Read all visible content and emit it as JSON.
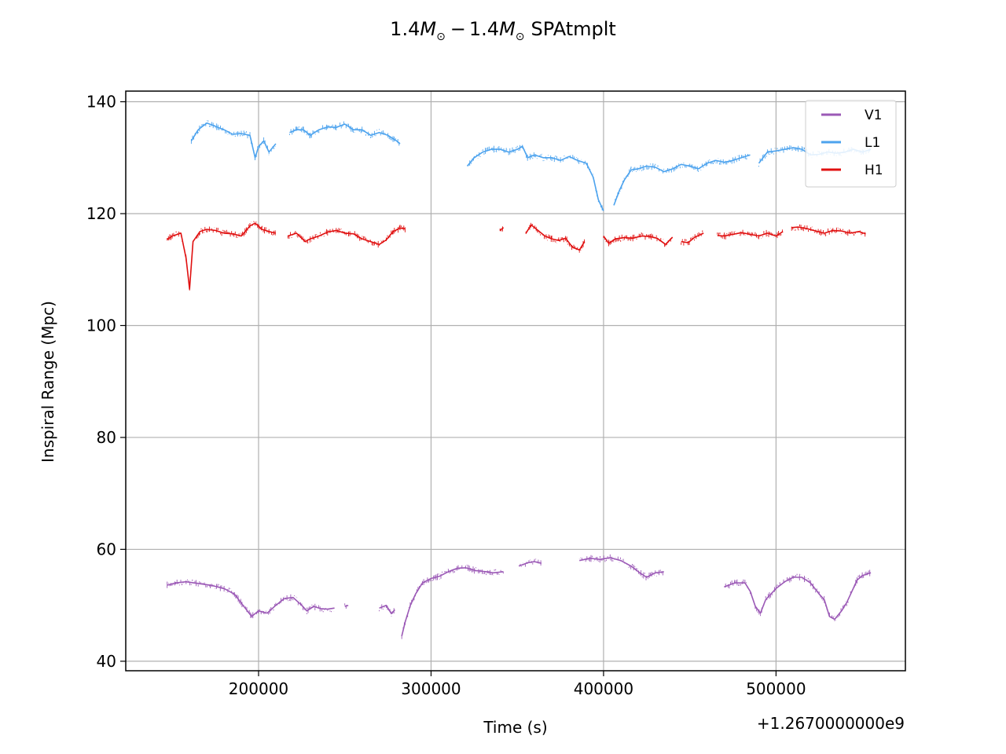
{
  "chart_data": {
    "type": "line",
    "title": "1.4M⊙ − 1.4M⊙ SPAtmplt",
    "title_parts": {
      "m1": "1.4",
      "m2": "1.4",
      "mass_symbol": "M",
      "sun_symbol": "⊙",
      "minus": "−",
      "suffix": "SPAtmplt"
    },
    "xlabel": "Time (s)",
    "ylabel": "Inspiral Range (Mpc)",
    "x_offset_label": "+1.2670000000e9",
    "x_offset": 1267000000,
    "xlim": [
      123000,
      575000
    ],
    "ylim": [
      38.3,
      141.9
    ],
    "x_ticks": [
      200000,
      300000,
      400000,
      500000
    ],
    "x_tick_labels": [
      "200000",
      "300000",
      "400000",
      "500000"
    ],
    "y_ticks": [
      40,
      60,
      80,
      100,
      120,
      140
    ],
    "y_tick_labels": [
      "40",
      "60",
      "80",
      "100",
      "120",
      "140"
    ],
    "grid": true,
    "legend_position": "top-right",
    "legend": [
      "V1",
      "L1",
      "H1"
    ],
    "series": [
      {
        "name": "V1",
        "color": "#9b59b6",
        "segments": [
          [
            [
              147000,
              53.6
            ],
            [
              152000,
              54.0
            ],
            [
              158000,
              54.2
            ],
            [
              165000,
              53.9
            ],
            [
              172000,
              53.6
            ],
            [
              180000,
              53.0
            ],
            [
              186000,
              52.0
            ],
            [
              191000,
              50.0
            ],
            [
              196000,
              48.0
            ],
            [
              200000,
              49.0
            ],
            [
              205000,
              48.6
            ],
            [
              210000,
              50.0
            ],
            [
              215000,
              51.2
            ],
            [
              220000,
              51.4
            ],
            [
              225000,
              50.0
            ],
            [
              228000,
              49.0
            ],
            [
              232000,
              49.8
            ],
            [
              236000,
              49.4
            ],
            [
              240000,
              49.3
            ],
            [
              244000,
              49.5
            ]
          ],
          [
            [
              250000,
              49.8
            ],
            [
              252000,
              50.0
            ]
          ],
          [
            [
              270000,
              49.5
            ],
            [
              274000,
              50.0
            ],
            [
              277000,
              48.5
            ],
            [
              279000,
              49.2
            ]
          ],
          [
            [
              283000,
              44.5
            ],
            [
              285000,
              47.0
            ],
            [
              288000,
              50.0
            ],
            [
              291000,
              52.0
            ],
            [
              295000,
              54.0
            ],
            [
              300000,
              54.8
            ],
            [
              305000,
              55.2
            ],
            [
              310000,
              56.0
            ],
            [
              315000,
              56.6
            ],
            [
              320000,
              56.7
            ],
            [
              326000,
              56.2
            ],
            [
              332000,
              56.0
            ],
            [
              336000,
              55.8
            ],
            [
              342000,
              56.0
            ]
          ],
          [
            [
              351000,
              57.0
            ],
            [
              356000,
              57.6
            ],
            [
              360000,
              57.8
            ],
            [
              364000,
              57.5
            ]
          ],
          [
            [
              386000,
              58.0
            ],
            [
              392000,
              58.4
            ],
            [
              398000,
              58.2
            ],
            [
              404000,
              58.5
            ],
            [
              410000,
              58.0
            ],
            [
              416000,
              57.0
            ],
            [
              421000,
              55.8
            ],
            [
              425000,
              55.0
            ],
            [
              430000,
              55.8
            ],
            [
              435000,
              56.0
            ]
          ],
          [
            [
              470000,
              53.3
            ],
            [
              476000,
              54.0
            ],
            [
              482000,
              54.0
            ],
            [
              485000,
              52.5
            ],
            [
              488000,
              49.8
            ],
            [
              491000,
              48.6
            ],
            [
              494000,
              51.0
            ],
            [
              500000,
              53.0
            ],
            [
              505000,
              54.2
            ],
            [
              510000,
              55.0
            ],
            [
              515000,
              55.0
            ],
            [
              520000,
              54.0
            ],
            [
              525000,
              52.0
            ],
            [
              528000,
              51.0
            ],
            [
              531000,
              48.0
            ],
            [
              534000,
              47.5
            ],
            [
              538000,
              49.0
            ],
            [
              541000,
              50.5
            ],
            [
              544000,
              52.5
            ],
            [
              547000,
              54.5
            ],
            [
              550000,
              55.3
            ],
            [
              555000,
              55.8
            ]
          ]
        ]
      },
      {
        "name": "L1",
        "color": "#4da3ee",
        "segments": [
          [
            [
              161000,
              133.0
            ],
            [
              165000,
              135.0
            ],
            [
              170000,
              136.2
            ],
            [
              175000,
              135.6
            ],
            [
              180000,
              135.0
            ],
            [
              185000,
              134.2
            ],
            [
              190000,
              134.3
            ],
            [
              195000,
              134.0
            ],
            [
              198000,
              130.0
            ],
            [
              200000,
              132.0
            ],
            [
              203000,
              133.0
            ],
            [
              206000,
              131.0
            ],
            [
              210000,
              132.5
            ]
          ],
          [
            [
              218000,
              134.5
            ],
            [
              222000,
              135.0
            ],
            [
              226000,
              135.0
            ],
            [
              230000,
              134.0
            ],
            [
              235000,
              135.0
            ],
            [
              240000,
              135.5
            ],
            [
              245000,
              135.4
            ],
            [
              250000,
              136.0
            ],
            [
              255000,
              135.0
            ],
            [
              260000,
              135.0
            ],
            [
              265000,
              134.0
            ],
            [
              270000,
              134.5
            ],
            [
              275000,
              134.0
            ],
            [
              280000,
              133.0
            ],
            [
              282000,
              132.5
            ]
          ],
          [
            [
              321000,
              128.5
            ],
            [
              325000,
              130.0
            ],
            [
              330000,
              131.0
            ],
            [
              335000,
              131.5
            ],
            [
              340000,
              131.5
            ],
            [
              345000,
              131.0
            ],
            [
              350000,
              131.5
            ],
            [
              353000,
              132.0
            ],
            [
              356000,
              130.0
            ],
            [
              360000,
              130.5
            ],
            [
              365000,
              130.0
            ],
            [
              370000,
              130.0
            ],
            [
              375000,
              129.5
            ],
            [
              380000,
              130.2
            ],
            [
              385000,
              129.5
            ],
            [
              390000,
              129.0
            ],
            [
              394000,
              126.5
            ],
            [
              397000,
              122.5
            ],
            [
              400000,
              120.5
            ]
          ],
          [
            [
              406000,
              121.5
            ],
            [
              409000,
              124.0
            ],
            [
              412000,
              126.0
            ],
            [
              416000,
              127.8
            ],
            [
              420000,
              128.0
            ],
            [
              425000,
              128.5
            ],
            [
              430000,
              128.3
            ],
            [
              435000,
              127.5
            ],
            [
              440000,
              128.0
            ],
            [
              445000,
              128.8
            ],
            [
              450000,
              128.5
            ],
            [
              455000,
              128.0
            ],
            [
              460000,
              129.0
            ],
            [
              465000,
              129.5
            ],
            [
              470000,
              129.2
            ],
            [
              475000,
              129.5
            ],
            [
              480000,
              130.0
            ],
            [
              485000,
              130.5
            ]
          ],
          [
            [
              490000,
              129.0
            ],
            [
              495000,
              131.0
            ],
            [
              500000,
              131.2
            ],
            [
              505000,
              131.5
            ],
            [
              510000,
              131.8
            ],
            [
              515000,
              131.5
            ],
            [
              520000,
              130.5
            ],
            [
              525000,
              130.6
            ],
            [
              530000,
              131.0
            ],
            [
              535000,
              130.8
            ],
            [
              540000,
              131.0
            ],
            [
              545000,
              131.5
            ],
            [
              550000,
              131.0
            ],
            [
              555000,
              131.5
            ]
          ]
        ]
      },
      {
        "name": "H1",
        "color": "#e01010",
        "segments": [
          [
            [
              147000,
              115.4
            ],
            [
              150000,
              116.0
            ],
            [
              155000,
              116.5
            ],
            [
              158000,
              112.0
            ],
            [
              160000,
              106.5
            ],
            [
              162000,
              115.0
            ],
            [
              166000,
              116.8
            ],
            [
              170000,
              117.2
            ],
            [
              175000,
              117.0
            ],
            [
              180000,
              116.5
            ],
            [
              185000,
              116.4
            ],
            [
              190000,
              116.0
            ],
            [
              195000,
              117.8
            ],
            [
              198000,
              118.3
            ],
            [
              202000,
              117.2
            ],
            [
              206000,
              116.8
            ],
            [
              210000,
              116.5
            ]
          ],
          [
            [
              217000,
              116.0
            ],
            [
              222000,
              116.5
            ],
            [
              227000,
              115.0
            ],
            [
              230000,
              115.5
            ],
            [
              235000,
              116.0
            ],
            [
              240000,
              116.7
            ],
            [
              245000,
              117.0
            ],
            [
              250000,
              116.5
            ],
            [
              255000,
              116.4
            ],
            [
              260000,
              115.5
            ],
            [
              265000,
              115.0
            ],
            [
              270000,
              114.5
            ],
            [
              274000,
              115.3
            ],
            [
              278000,
              116.8
            ],
            [
              282000,
              117.4
            ],
            [
              285000,
              117.3
            ]
          ],
          [
            [
              340000,
              117.0
            ],
            [
              342000,
              117.5
            ]
          ],
          [
            [
              355000,
              116.5
            ],
            [
              358000,
              118.0
            ],
            [
              362000,
              117.0
            ],
            [
              366000,
              116.0
            ],
            [
              370000,
              115.5
            ],
            [
              374000,
              115.2
            ],
            [
              378000,
              115.6
            ],
            [
              382000,
              114.0
            ],
            [
              386000,
              113.5
            ],
            [
              389000,
              115.0
            ]
          ],
          [
            [
              400000,
              116.0
            ],
            [
              403000,
              114.7
            ],
            [
              407000,
              115.5
            ],
            [
              412000,
              115.7
            ],
            [
              417000,
              115.6
            ],
            [
              422000,
              116.0
            ],
            [
              427000,
              115.9
            ],
            [
              431000,
              115.6
            ],
            [
              436000,
              114.5
            ],
            [
              440000,
              115.8
            ]
          ],
          [
            [
              445000,
              115.0
            ],
            [
              449000,
              114.8
            ],
            [
              453000,
              115.8
            ],
            [
              458000,
              116.5
            ]
          ],
          [
            [
              466000,
              116.1
            ],
            [
              470000,
              116.0
            ],
            [
              475000,
              116.3
            ],
            [
              480000,
              116.6
            ],
            [
              485000,
              116.3
            ],
            [
              490000,
              116.0
            ],
            [
              495000,
              116.5
            ],
            [
              500000,
              116.0
            ],
            [
              504000,
              116.8
            ]
          ],
          [
            [
              509000,
              117.5
            ],
            [
              513000,
              117.6
            ],
            [
              518000,
              117.3
            ],
            [
              523000,
              116.9
            ],
            [
              528000,
              116.5
            ],
            [
              533000,
              117.0
            ],
            [
              538000,
              116.9
            ],
            [
              543000,
              116.5
            ],
            [
              548000,
              116.8
            ],
            [
              552000,
              116.4
            ]
          ]
        ]
      }
    ]
  }
}
